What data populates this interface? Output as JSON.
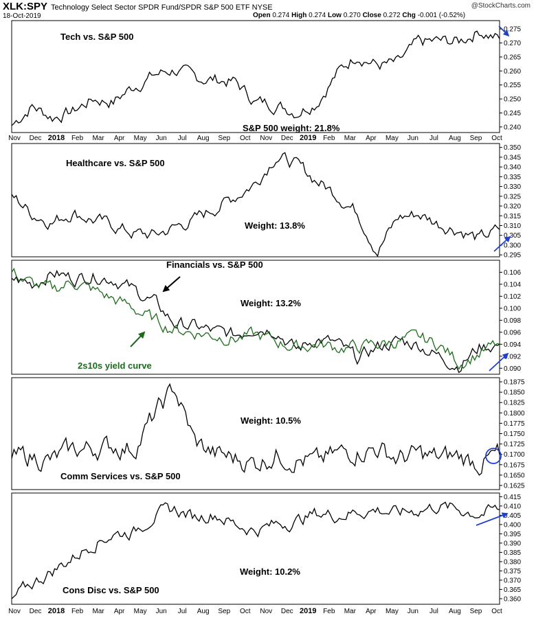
{
  "header": {
    "symbol": "XLK:SPY",
    "description": "Technology Select Sector SPDR Fund/SPDR S&P 500 ETF  NYSE",
    "date": "18-Oct-2019",
    "open_label": "Open",
    "open": "0.274",
    "high_label": "High",
    "high": "0.274",
    "low_label": "Low",
    "low": "0.270",
    "close_label": "Close",
    "close": "0.272",
    "chg_label": "Chg",
    "chg": "-0.001 (-0.52%)",
    "brand": "@StockCharts.com"
  },
  "colors": {
    "line": "#000000",
    "yield_curve": "#1a6b1a",
    "arrow": "#1f3fd0",
    "axis": "#000000"
  },
  "x_axis_labels": [
    {
      "label": "Nov",
      "bold": false
    },
    {
      "label": "Dec",
      "bold": false
    },
    {
      "label": "2018",
      "bold": true
    },
    {
      "label": "Feb",
      "bold": false
    },
    {
      "label": "Mar",
      "bold": false
    },
    {
      "label": "Apr",
      "bold": false
    },
    {
      "label": "May",
      "bold": false
    },
    {
      "label": "Jun",
      "bold": false
    },
    {
      "label": "Jul",
      "bold": false
    },
    {
      "label": "Aug",
      "bold": false
    },
    {
      "label": "Sep",
      "bold": false
    },
    {
      "label": "Oct",
      "bold": false
    },
    {
      "label": "Nov",
      "bold": false
    },
    {
      "label": "Dec",
      "bold": false
    },
    {
      "label": "2019",
      "bold": true
    },
    {
      "label": "Feb",
      "bold": false
    },
    {
      "label": "Mar",
      "bold": false
    },
    {
      "label": "Apr",
      "bold": false
    },
    {
      "label": "May",
      "bold": false
    },
    {
      "label": "Jun",
      "bold": false
    },
    {
      "label": "Jul",
      "bold": false
    },
    {
      "label": "Aug",
      "bold": false
    },
    {
      "label": "Sep",
      "bold": false
    },
    {
      "label": "Oct",
      "bold": false
    }
  ],
  "chart_data": [
    {
      "type": "line",
      "title": "Tech vs. S&P 500",
      "annotation": "S&P 500 weight: 21.8%",
      "ylim": [
        0.238,
        0.278
      ],
      "y_ticks": [
        "0.240",
        "0.245",
        "0.250",
        "0.255",
        "0.260",
        "0.265",
        "0.270",
        "0.275"
      ],
      "x": [
        "Nov 2017",
        "Dec 2017",
        "2018",
        "Feb 2018",
        "Mar 2018",
        "Apr 2018",
        "May 2018",
        "Jun 2018",
        "Jul 2018",
        "Aug 2018",
        "Sep 2018",
        "Oct 2018",
        "Nov 2018",
        "Dec 2018",
        "2019",
        "Feb 2019",
        "Mar 2019",
        "Apr 2019",
        "May 2019",
        "Jun 2019",
        "Jul 2019",
        "Aug 2019",
        "Sep 2019",
        "Oct 2019",
        "Oct 18 2019"
      ],
      "values": [
        0.2405,
        0.2475,
        0.2435,
        0.2455,
        0.25,
        0.249,
        0.2545,
        0.2585,
        0.2605,
        0.2575,
        0.257,
        0.256,
        0.249,
        0.248,
        0.2455,
        0.249,
        0.259,
        0.266,
        0.262,
        0.2625,
        0.27,
        0.2705,
        0.2705,
        0.2745,
        0.2715
      ],
      "last_direction": "down"
    },
    {
      "type": "line",
      "title": "Healthcare vs. S&P 500",
      "annotation": "Weight: 13.8%",
      "ylim": [
        0.294,
        0.352
      ],
      "y_ticks": [
        "0.295",
        "0.300",
        "0.305",
        "0.310",
        "0.315",
        "0.320",
        "0.325",
        "0.330",
        "0.335",
        "0.340",
        "0.345",
        "0.350"
      ],
      "x": [
        "Nov 2017",
        "Dec 2017",
        "2018",
        "Feb 2018",
        "Mar 2018",
        "Apr 2018",
        "May 2018",
        "Jun 2018",
        "Jul 2018",
        "Aug 2018",
        "Sep 2018",
        "Oct 2018",
        "Nov 2018",
        "Dec 2018",
        "2019",
        "Feb 2019",
        "Mar 2019",
        "Apr 2019",
        "May 2019",
        "Jun 2019",
        "Jul 2019",
        "Aug 2019",
        "Sep 2019",
        "Oct 2019",
        "Oct 18 2019"
      ],
      "values": [
        0.326,
        0.316,
        0.312,
        0.317,
        0.313,
        0.31,
        0.306,
        0.305,
        0.309,
        0.313,
        0.319,
        0.325,
        0.332,
        0.346,
        0.341,
        0.333,
        0.326,
        0.317,
        0.297,
        0.314,
        0.316,
        0.311,
        0.308,
        0.303,
        0.308
      ],
      "last_direction": "up"
    },
    {
      "type": "line",
      "title": "Financials vs. S&P 500",
      "annotation": "Weight: 13.2%",
      "secondary_label": "2s10s yield curve",
      "ylim": [
        0.089,
        0.108
      ],
      "y_ticks": [
        "0.090",
        "0.092",
        "0.094",
        "0.096",
        "0.098",
        "0.100",
        "0.102",
        "0.104",
        "0.106"
      ],
      "x": [
        "Nov 2017",
        "Dec 2017",
        "2018",
        "Feb 2018",
        "Mar 2018",
        "Apr 2018",
        "May 2018",
        "Jun 2018",
        "Jul 2018",
        "Aug 2018",
        "Sep 2018",
        "Oct 2018",
        "Nov 2018",
        "Dec 2018",
        "2019",
        "Feb 2019",
        "Mar 2019",
        "Apr 2019",
        "May 2019",
        "Jun 2019",
        "Jul 2019",
        "Aug 2019",
        "Sep 2019",
        "Oct 2019",
        "Oct 18 2019"
      ],
      "series": [
        {
          "values": [
            0.105,
            0.104,
            0.106,
            0.105,
            0.1055,
            0.105,
            0.103,
            0.101,
            0.0975,
            0.097,
            0.096,
            0.0955,
            0.097,
            0.0965,
            0.093,
            0.095,
            0.094,
            0.0915,
            0.0935,
            0.0945,
            0.094,
            0.092,
            0.0905,
            0.0935,
            0.094
          ]
        },
        {
          "values": [
            0.106,
            0.104,
            0.103,
            0.1045,
            0.103,
            0.1015,
            0.1,
            0.098,
            0.0965,
            0.096,
            0.0955,
            0.095,
            0.0955,
            0.0945,
            0.0935,
            0.094,
            0.0935,
            0.0935,
            0.094,
            0.0945,
            0.095,
            0.094,
            0.091,
            0.0925,
            0.094
          ]
        }
      ],
      "last_direction": "up"
    },
    {
      "type": "line",
      "title": "Comm Services vs. S&P 500",
      "annotation": "Weight: 10.5%",
      "ylim": [
        0.1615,
        0.1885
      ],
      "y_ticks": [
        "0.1625",
        "0.1650",
        "0.1675",
        "0.1700",
        "0.1725",
        "0.1750",
        "0.1775",
        "0.1800",
        "0.1825",
        "0.1850",
        "0.1875"
      ],
      "x": [
        "Nov 2017",
        "Dec 2017",
        "2018",
        "Feb 2018",
        "Mar 2018",
        "Apr 2018",
        "May 2018",
        "Jun 2018",
        "Jul 2018",
        "Aug 2018",
        "Sep 2018",
        "Oct 2018",
        "Nov 2018",
        "Dec 2018",
        "2019",
        "Feb 2019",
        "Mar 2019",
        "Apr 2019",
        "May 2019",
        "Jun 2019",
        "Jul 2019",
        "Aug 2019",
        "Sep 2019",
        "Oct 2019",
        "Oct 18 2019"
      ],
      "values": [
        0.169,
        0.1695,
        0.1685,
        0.171,
        0.1715,
        0.172,
        0.1715,
        0.179,
        0.186,
        0.173,
        0.17,
        0.169,
        0.168,
        0.17,
        0.169,
        0.168,
        0.17,
        0.171,
        0.1715,
        0.169,
        0.17,
        0.169,
        0.1695,
        0.168,
        0.17
      ],
      "last_direction": "flat"
    },
    {
      "type": "line",
      "title": "Cons Disc vs. S&P 500",
      "annotation": "Weight: 10.2%",
      "ylim": [
        0.357,
        0.417
      ],
      "y_ticks": [
        "0.360",
        "0.365",
        "0.370",
        "0.375",
        "0.380",
        "0.385",
        "0.390",
        "0.395",
        "0.400",
        "0.405",
        "0.410",
        "0.415"
      ],
      "x": [
        "Nov 2017",
        "Dec 2017",
        "2018",
        "Feb 2018",
        "Mar 2018",
        "Apr 2018",
        "May 2018",
        "Jun 2018",
        "Jul 2018",
        "Aug 2018",
        "Sep 2018",
        "Oct 2018",
        "Nov 2018",
        "Dec 2018",
        "2019",
        "Feb 2019",
        "Mar 2019",
        "Apr 2019",
        "May 2019",
        "Jun 2019",
        "Jul 2019",
        "Aug 2019",
        "Sep 2019",
        "Oct 2019",
        "Oct 18 2019"
      ],
      "values": [
        0.36,
        0.368,
        0.375,
        0.382,
        0.39,
        0.395,
        0.396,
        0.405,
        0.408,
        0.404,
        0.406,
        0.4,
        0.397,
        0.4,
        0.402,
        0.406,
        0.405,
        0.407,
        0.408,
        0.406,
        0.408,
        0.41,
        0.408,
        0.406,
        0.408
      ],
      "last_direction": "up"
    }
  ]
}
